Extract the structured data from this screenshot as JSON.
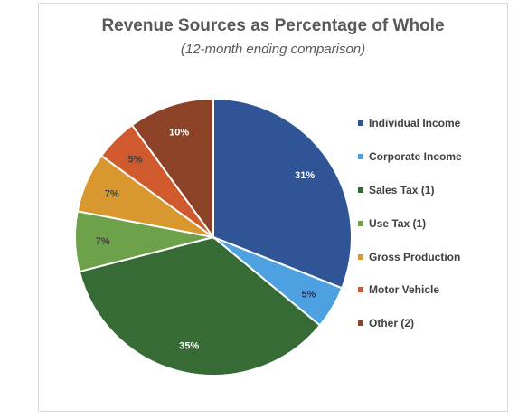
{
  "chart_data": {
    "type": "pie",
    "title": "Revenue Sources as Percentage of Whole",
    "subtitle": "(12-month ending comparison)",
    "categories": [
      "Individual Income",
      "Corporate Income",
      "Sales Tax (1)",
      "Use Tax (1)",
      "Gross Production",
      "Motor Vehicle",
      "Other (2)"
    ],
    "values": [
      31,
      5,
      35,
      7,
      7,
      5,
      10
    ],
    "data_labels": [
      "31%",
      "5%",
      "35%",
      "7%",
      "7%",
      "5%",
      "10%"
    ],
    "colors": [
      "#2f5597",
      "#4ea1e0",
      "#376b35",
      "#6ea24a",
      "#d9982f",
      "#d05a2e",
      "#8b4226"
    ],
    "label_colors": [
      "#ffffff",
      "#1f3864",
      "#ffffff",
      "#404040",
      "#404040",
      "#404040",
      "#ffffff"
    ],
    "start_angle_deg": 0,
    "direction": "clockwise",
    "legend_position": "right"
  }
}
